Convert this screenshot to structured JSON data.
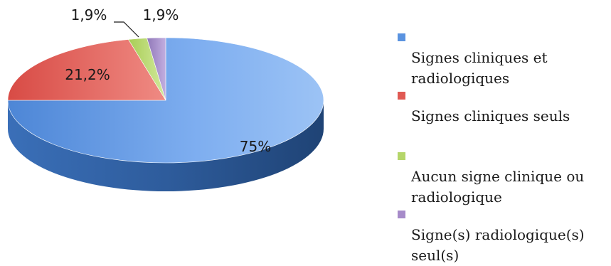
{
  "chart_data": {
    "type": "pie",
    "title": "",
    "slices": [
      {
        "label": "Signes cliniques et\nradiologiques",
        "value": 75,
        "display": "75%",
        "color": "#5a93e0"
      },
      {
        "label": "Signes cliniques seuls",
        "value": 21.2,
        "display": "21,2%",
        "color": "#e05a53"
      },
      {
        "label": "Aucun signe clinique ou\nradiologique",
        "value": 1.9,
        "display": "1,9%",
        "color": "#b5d66a"
      },
      {
        "label": "Signe(s) radiologique(s)\nseul(s)",
        "value": 1.9,
        "display": "1,9%",
        "color": "#a68bc9"
      }
    ],
    "legend_position": "right",
    "style": "3d"
  }
}
